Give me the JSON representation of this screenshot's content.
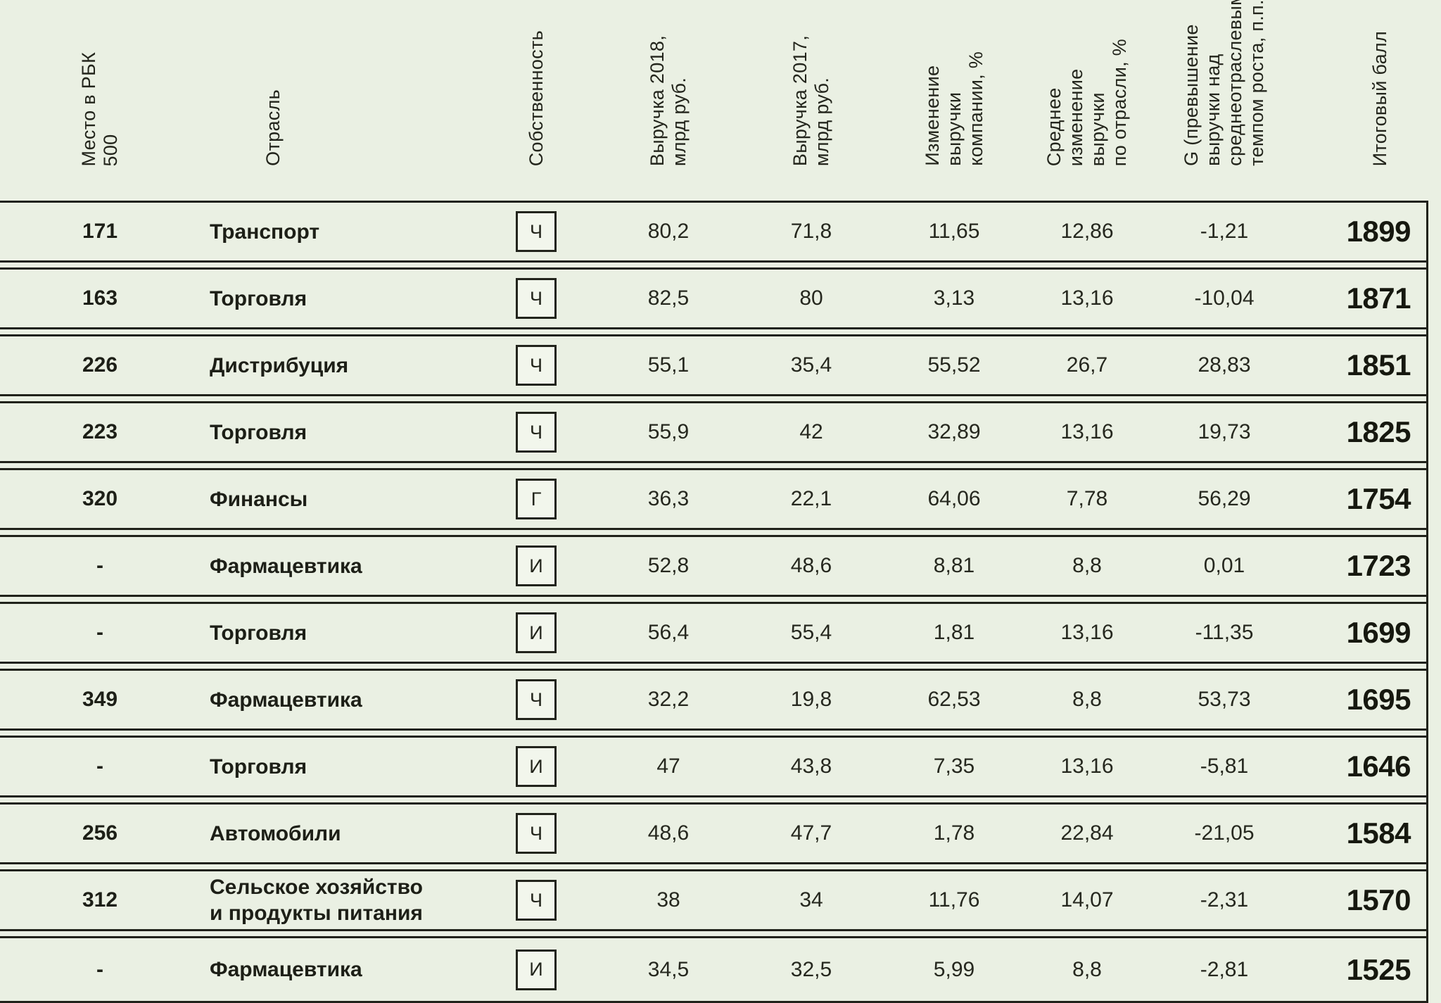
{
  "table": {
    "headers": [
      {
        "label": "Место в РБК\n500"
      },
      {
        "label": "Отрасль"
      },
      {
        "label": "Собственность"
      },
      {
        "label": "Выручка 2018,\nмлрд руб."
      },
      {
        "label": "Выручка 2017,\nмлрд руб."
      },
      {
        "label": "Изменение\nвыручки\nкомпании, %"
      },
      {
        "label": "Среднее\nизменение\nвыручки\nпо отрасли, %"
      },
      {
        "label": "G (превышение\nвыручки над\nсреднеотраслевым\nтемпом роста, п.п.)"
      },
      {
        "label": "Итоговый балл"
      }
    ],
    "rows": [
      {
        "rank": "171",
        "industry": "Транспорт",
        "ownership": "Ч",
        "rev2018": "80,2",
        "rev2017": "71,8",
        "change": "11,65",
        "industry_avg": "12,86",
        "g": "-1,21",
        "score": "1899"
      },
      {
        "rank": "163",
        "industry": "Торговля",
        "ownership": "Ч",
        "rev2018": "82,5",
        "rev2017": "80",
        "change": "3,13",
        "industry_avg": "13,16",
        "g": "-10,04",
        "score": "1871"
      },
      {
        "rank": "226",
        "industry": "Дистрибуция",
        "ownership": "Ч",
        "rev2018": "55,1",
        "rev2017": "35,4",
        "change": "55,52",
        "industry_avg": "26,7",
        "g": "28,83",
        "score": "1851"
      },
      {
        "rank": "223",
        "industry": "Торговля",
        "ownership": "Ч",
        "rev2018": "55,9",
        "rev2017": "42",
        "change": "32,89",
        "industry_avg": "13,16",
        "g": "19,73",
        "score": "1825"
      },
      {
        "rank": "320",
        "industry": "Финансы",
        "ownership": "Г",
        "rev2018": "36,3",
        "rev2017": "22,1",
        "change": "64,06",
        "industry_avg": "7,78",
        "g": "56,29",
        "score": "1754"
      },
      {
        "rank": "-",
        "industry": "Фармацевтика",
        "ownership": "И",
        "rev2018": "52,8",
        "rev2017": "48,6",
        "change": "8,81",
        "industry_avg": "8,8",
        "g": "0,01",
        "score": "1723"
      },
      {
        "rank": "-",
        "industry": "Торговля",
        "ownership": "И",
        "rev2018": "56,4",
        "rev2017": "55,4",
        "change": "1,81",
        "industry_avg": "13,16",
        "g": "-11,35",
        "score": "1699"
      },
      {
        "rank": "349",
        "industry": "Фармацевтика",
        "ownership": "Ч",
        "rev2018": "32,2",
        "rev2017": "19,8",
        "change": "62,53",
        "industry_avg": "8,8",
        "g": "53,73",
        "score": "1695"
      },
      {
        "rank": "-",
        "industry": "Торговля",
        "ownership": "И",
        "rev2018": "47",
        "rev2017": "43,8",
        "change": "7,35",
        "industry_avg": "13,16",
        "g": "-5,81",
        "score": "1646"
      },
      {
        "rank": "256",
        "industry": "Автомобили",
        "ownership": "Ч",
        "rev2018": "48,6",
        "rev2017": "47,7",
        "change": "1,78",
        "industry_avg": "22,84",
        "g": "-21,05",
        "score": "1584"
      },
      {
        "rank": "312",
        "industry": "Сельское хозяйство\nи продукты питания",
        "ownership": "Ч",
        "rev2018": "38",
        "rev2017": "34",
        "change": "11,76",
        "industry_avg": "14,07",
        "g": "-2,31",
        "score": "1570"
      },
      {
        "rank": "-",
        "industry": "Фармацевтика",
        "ownership": "И",
        "rev2018": "34,5",
        "rev2017": "32,5",
        "change": "5,99",
        "industry_avg": "8,8",
        "g": "-2,81",
        "score": "1525"
      }
    ]
  },
  "colors": {
    "background": "#eaf0e3",
    "line": "#20221a",
    "text": "#23251c",
    "box_background": "#f2f6ec"
  },
  "chart_data": {
    "type": "table",
    "columns": [
      "Место в РБК 500",
      "Отрасль",
      "Собственность",
      "Выручка 2018, млрд руб.",
      "Выручка 2017, млрд руб.",
      "Изменение выручки компании, %",
      "Среднее изменение выручки по отрасли, %",
      "G (превышение выручки над среднеотраслевым темпом роста, п.п.)",
      "Итоговый балл"
    ],
    "rows": [
      [
        "171",
        "Транспорт",
        "Ч",
        "80,2",
        "71,8",
        "11,65",
        "12,86",
        "-1,21",
        "1899"
      ],
      [
        "163",
        "Торговля",
        "Ч",
        "82,5",
        "80",
        "3,13",
        "13,16",
        "-10,04",
        "1871"
      ],
      [
        "226",
        "Дистрибуция",
        "Ч",
        "55,1",
        "35,4",
        "55,52",
        "26,7",
        "28,83",
        "1851"
      ],
      [
        "223",
        "Торговля",
        "Ч",
        "55,9",
        "42",
        "32,89",
        "13,16",
        "19,73",
        "1825"
      ],
      [
        "320",
        "Финансы",
        "Г",
        "36,3",
        "22,1",
        "64,06",
        "7,78",
        "56,29",
        "1754"
      ],
      [
        "-",
        "Фармацевтика",
        "И",
        "52,8",
        "48,6",
        "8,81",
        "8,8",
        "0,01",
        "1723"
      ],
      [
        "-",
        "Торговля",
        "И",
        "56,4",
        "55,4",
        "1,81",
        "13,16",
        "-11,35",
        "1699"
      ],
      [
        "349",
        "Фармацевтика",
        "Ч",
        "32,2",
        "19,8",
        "62,53",
        "8,8",
        "53,73",
        "1695"
      ],
      [
        "-",
        "Торговля",
        "И",
        "47",
        "43,8",
        "7,35",
        "13,16",
        "-5,81",
        "1646"
      ],
      [
        "256",
        "Автомобили",
        "Ч",
        "48,6",
        "47,7",
        "1,78",
        "22,84",
        "-21,05",
        "1584"
      ],
      [
        "312",
        "Сельское хозяйство и продукты питания",
        "Ч",
        "38",
        "34",
        "11,76",
        "14,07",
        "-2,31",
        "1570"
      ],
      [
        "-",
        "Фармацевтика",
        "И",
        "34,5",
        "32,5",
        "5,99",
        "8,8",
        "-2,81",
        "1525"
      ]
    ]
  }
}
